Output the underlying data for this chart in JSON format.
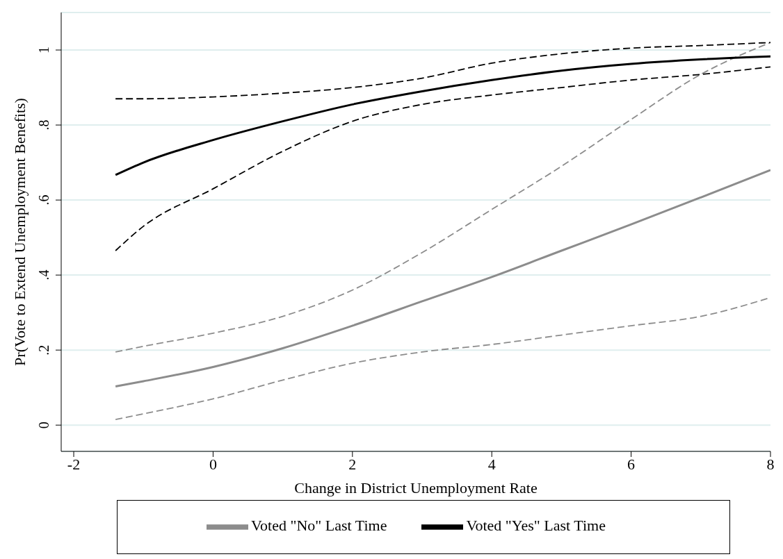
{
  "chart_data": {
    "type": "line",
    "xlabel": "Change in District Unemployment Rate",
    "ylabel": "Pr(Vote to Extend Unemployment Benefits)",
    "x": [
      -1.4,
      -1,
      0,
      1,
      2,
      3,
      4,
      5,
      6,
      7,
      8
    ],
    "xlim": [
      -2.18,
      8
    ],
    "xticks": [
      -2,
      0,
      2,
      4,
      6,
      8
    ],
    "ylim": [
      -0.07,
      1.1
    ],
    "yticks": [
      0,
      {
        "value": 0.2,
        "label": ".2"
      },
      {
        "value": 0.4,
        "label": ".4"
      },
      {
        "value": 0.6,
        "label": ".6"
      },
      {
        "value": 0.8,
        "label": ".8"
      },
      1
    ],
    "grid": "y",
    "legend": "bottom",
    "marker": "none",
    "series": [
      {
        "name": "Voted \"No\" Last Time",
        "color": "#8c8c8c",
        "line_style": "solid",
        "values": [
          0.103,
          0.117,
          0.155,
          0.205,
          0.265,
          0.33,
          0.395,
          0.465,
          0.535,
          0.607,
          0.68
        ]
      },
      {
        "color": "#8c8c8c",
        "line_style": "dashed",
        "values": [
          0.195,
          0.21,
          0.245,
          0.29,
          0.36,
          0.46,
          0.575,
          0.69,
          0.815,
          0.935,
          1.02
        ]
      },
      {
        "color": "#8c8c8c",
        "line_style": "dashed",
        "values": [
          0.015,
          0.03,
          0.07,
          0.12,
          0.165,
          0.195,
          0.215,
          0.24,
          0.265,
          0.29,
          0.34
        ]
      },
      {
        "name": "Voted \"Yes\" Last Time",
        "color": "#000000",
        "line_style": "solid",
        "values": [
          0.667,
          0.7,
          0.76,
          0.81,
          0.855,
          0.89,
          0.92,
          0.945,
          0.963,
          0.975,
          0.983
        ]
      },
      {
        "color": "#000000",
        "line_style": "dashed",
        "values": [
          0.87,
          0.87,
          0.875,
          0.885,
          0.9,
          0.925,
          0.965,
          0.99,
          1.005,
          1.012,
          1.02
        ]
      },
      {
        "color": "#000000",
        "line_style": "dashed",
        "values": [
          0.465,
          0.53,
          0.63,
          0.73,
          0.81,
          0.855,
          0.88,
          0.9,
          0.92,
          0.935,
          0.955
        ]
      }
    ]
  }
}
